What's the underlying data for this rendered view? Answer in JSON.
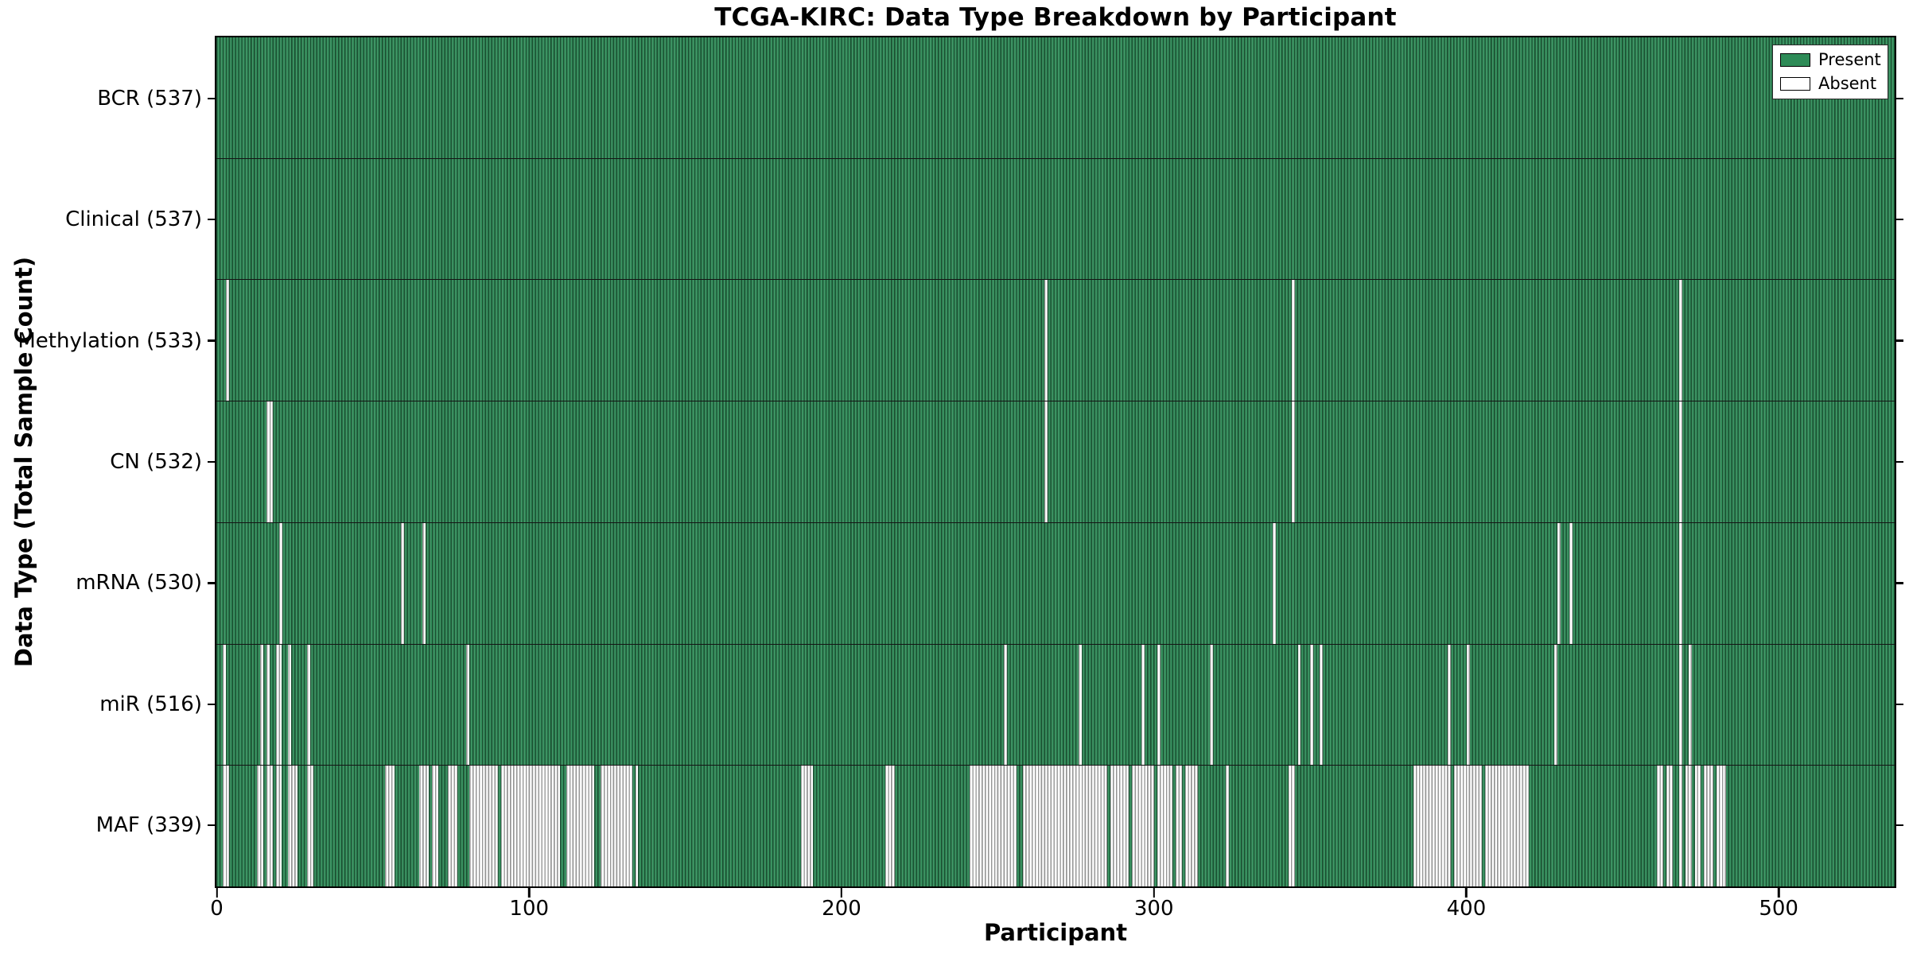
{
  "chart_data": {
    "type": "heatmap",
    "title": "TCGA-KIRC: Data Type Breakdown by Participant",
    "xlabel": "Participant",
    "ylabel": "Data Type (Total Sample Count)",
    "total_participants": 537,
    "x_range": [
      0,
      537
    ],
    "x_ticks": [
      0,
      100,
      200,
      300,
      400,
      500
    ],
    "grid": "column-separators-per-participant",
    "legend": {
      "position": "upper-right",
      "entries": [
        {
          "label": "Present",
          "color": "#2e8b57"
        },
        {
          "label": "Absent",
          "color": "#ffffff"
        }
      ]
    },
    "rows": [
      {
        "name": "BCR",
        "count": 537,
        "tick_label": "BCR (537)",
        "absent_ranges": []
      },
      {
        "name": "Clinical",
        "count": 537,
        "tick_label": "Clinical (537)",
        "absent_ranges": []
      },
      {
        "name": "Methylation",
        "count": 533,
        "tick_label": "Methylation (533)",
        "absent_ranges": [
          [
            3,
            3
          ],
          [
            265,
            265
          ],
          [
            344,
            344
          ],
          [
            468,
            468
          ]
        ]
      },
      {
        "name": "CN",
        "count": 532,
        "tick_label": "CN (532)",
        "absent_ranges": [
          [
            16,
            17
          ],
          [
            265,
            265
          ],
          [
            344,
            344
          ],
          [
            468,
            468
          ]
        ]
      },
      {
        "name": "mRNA",
        "count": 530,
        "tick_label": "mRNA (530)",
        "absent_ranges": [
          [
            20,
            20
          ],
          [
            59,
            59
          ],
          [
            66,
            66
          ],
          [
            338,
            338
          ],
          [
            429,
            429
          ],
          [
            433,
            433
          ],
          [
            468,
            468
          ]
        ]
      },
      {
        "name": "miR",
        "count": 516,
        "tick_label": "miR (516)",
        "absent_ranges": [
          [
            2,
            2
          ],
          [
            14,
            14
          ],
          [
            16,
            16
          ],
          [
            19,
            20
          ],
          [
            23,
            23
          ],
          [
            29,
            29
          ],
          [
            80,
            80
          ],
          [
            252,
            252
          ],
          [
            276,
            276
          ],
          [
            296,
            296
          ],
          [
            301,
            301
          ],
          [
            318,
            318
          ],
          [
            346,
            346
          ],
          [
            350,
            350
          ],
          [
            353,
            353
          ],
          [
            394,
            394
          ],
          [
            400,
            400
          ],
          [
            428,
            428
          ],
          [
            468,
            468
          ],
          [
            471,
            471
          ]
        ]
      },
      {
        "name": "MAF",
        "count": 339,
        "tick_label": "MAF (339)",
        "absent_ranges": [
          [
            2,
            3
          ],
          [
            13,
            14
          ],
          [
            16,
            17
          ],
          [
            19,
            20
          ],
          [
            23,
            25
          ],
          [
            29,
            30
          ],
          [
            54,
            56
          ],
          [
            65,
            67
          ],
          [
            69,
            70
          ],
          [
            74,
            76
          ],
          [
            81,
            89
          ],
          [
            91,
            109
          ],
          [
            112,
            120
          ],
          [
            123,
            132
          ],
          [
            134,
            134
          ],
          [
            187,
            190
          ],
          [
            214,
            216
          ],
          [
            241,
            255
          ],
          [
            258,
            284
          ],
          [
            286,
            291
          ],
          [
            293,
            299
          ],
          [
            301,
            305
          ],
          [
            307,
            308
          ],
          [
            310,
            313
          ],
          [
            323,
            323
          ],
          [
            343,
            344
          ],
          [
            383,
            394
          ],
          [
            396,
            404
          ],
          [
            406,
            419
          ],
          [
            461,
            462
          ],
          [
            464,
            465
          ],
          [
            468,
            468
          ],
          [
            470,
            471
          ],
          [
            473,
            474
          ],
          [
            476,
            478
          ],
          [
            480,
            482
          ]
        ]
      }
    ],
    "colors": {
      "present": "#2e8b57",
      "absent": "#ffffff",
      "separator": "#141414",
      "text": "#000000",
      "background": "#ffffff"
    }
  }
}
